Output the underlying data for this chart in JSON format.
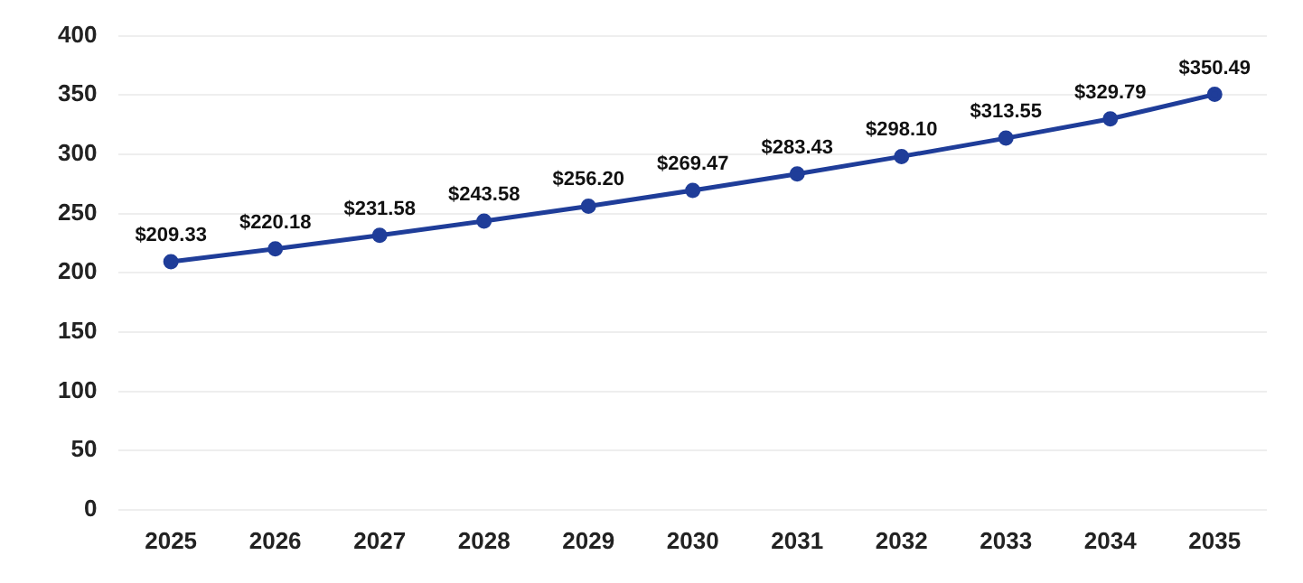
{
  "chart_data": {
    "type": "line",
    "categories": [
      "2025",
      "2026",
      "2027",
      "2028",
      "2029",
      "2030",
      "2031",
      "2032",
      "2033",
      "2034",
      "2035"
    ],
    "series": [
      {
        "color": "#1f3d99",
        "values": [
          209.33,
          220.18,
          231.58,
          243.58,
          256.2,
          269.47,
          283.43,
          298.1,
          313.55,
          329.79,
          350.49
        ],
        "value_labels": [
          "$209.33",
          "$220.18",
          "$231.58",
          "$243.58",
          "$256.20",
          "$269.47",
          "$283.43",
          "$298.10",
          "$313.55",
          "$329.79",
          "$350.49"
        ]
      }
    ],
    "ylim": [
      0,
      400
    ],
    "yticks": [
      0,
      50,
      100,
      150,
      200,
      250,
      300,
      350,
      400
    ],
    "grid": "y",
    "legend": false,
    "marker": "circle",
    "line_style": "solid"
  }
}
